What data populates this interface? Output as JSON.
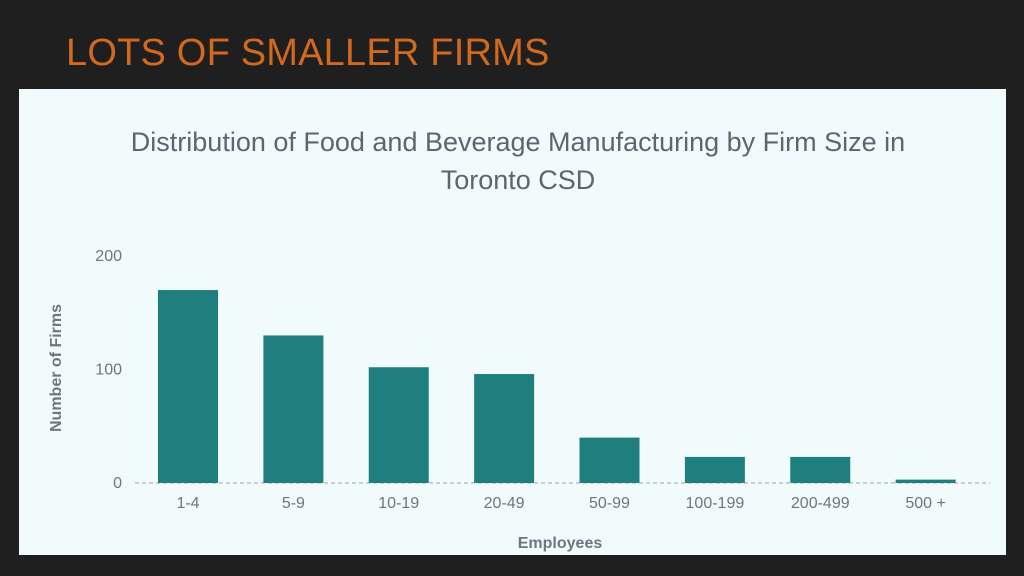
{
  "slide": {
    "title": "LOTS OF SMALLER FIRMS",
    "title_color": "#d2691e",
    "background": "#1f1f1f",
    "panel_background": "#f1fbfb"
  },
  "chart_data": {
    "type": "bar",
    "title_lines": [
      "Distribution of Food and Beverage Manufacturing by Firm Size in",
      "Toronto CSD"
    ],
    "xlabel": "Employees",
    "ylabel": "Number of Firms",
    "categories": [
      "1-4",
      "5-9",
      "10-19",
      "20-49",
      "50-99",
      "100-199",
      "200-499",
      "500 +"
    ],
    "values": [
      170,
      130,
      102,
      96,
      40,
      23,
      23,
      3
    ],
    "ylim": [
      0,
      200
    ],
    "yticks": [
      0,
      100,
      200
    ],
    "grid": false,
    "bar_color": "#1f7f7f"
  }
}
